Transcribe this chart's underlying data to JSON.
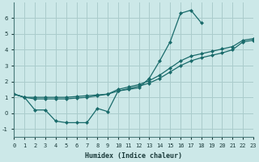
{
  "xlabel": "Humidex (Indice chaleur)",
  "bg_color": "#cce8e8",
  "grid_color": "#aacccc",
  "line_color": "#1a6b6b",
  "x_data": [
    0,
    1,
    2,
    3,
    4,
    5,
    6,
    7,
    8,
    9,
    10,
    11,
    12,
    13,
    14,
    15,
    16,
    17,
    18,
    19,
    20,
    21,
    22,
    23
  ],
  "y_curve1": [
    1.2,
    1.0,
    0.2,
    0.2,
    -0.5,
    -0.6,
    -0.6,
    -0.6,
    0.3,
    0.1,
    1.4,
    1.5,
    1.6,
    2.2,
    3.3,
    4.5,
    6.3,
    6.5,
    5.7,
    null,
    null,
    null,
    null,
    null
  ],
  "y_line1": [
    1.2,
    1.0,
    1.0,
    1.0,
    1.0,
    1.0,
    1.05,
    1.1,
    1.15,
    1.2,
    1.4,
    1.55,
    1.7,
    1.9,
    2.2,
    2.6,
    3.0,
    3.3,
    3.5,
    3.65,
    3.8,
    4.0,
    4.5,
    4.6
  ],
  "y_line2": [
    1.2,
    1.0,
    0.9,
    0.9,
    0.9,
    0.9,
    0.95,
    1.0,
    1.1,
    1.2,
    1.5,
    1.65,
    1.8,
    2.05,
    2.4,
    2.85,
    3.3,
    3.6,
    3.75,
    3.9,
    4.05,
    4.2,
    4.6,
    4.7
  ],
  "ylim": [
    -1.5,
    7.0
  ],
  "xlim": [
    0,
    23
  ],
  "yticks": [
    -1,
    0,
    1,
    2,
    3,
    4,
    5,
    6
  ],
  "xticks": [
    0,
    1,
    2,
    3,
    4,
    5,
    6,
    7,
    8,
    9,
    10,
    11,
    12,
    13,
    14,
    15,
    16,
    17,
    18,
    19,
    20,
    21,
    22,
    23
  ]
}
